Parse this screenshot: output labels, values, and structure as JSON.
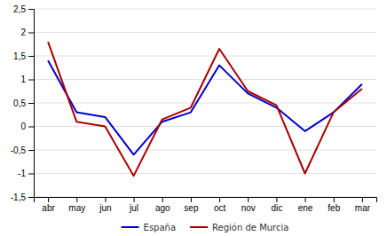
{
  "chart_data": {
    "type": "line",
    "categories": [
      "abr",
      "may",
      "jun",
      "jul",
      "ago",
      "sep",
      "oct",
      "nov",
      "dic",
      "ene",
      "feb",
      "mar"
    ],
    "series": [
      {
        "name": "España",
        "color": "#0000cc",
        "values": [
          1.4,
          0.3,
          0.2,
          -0.6,
          0.1,
          0.3,
          1.3,
          0.7,
          0.4,
          -0.1,
          0.3,
          0.9
        ]
      },
      {
        "name": "Región de Murcia",
        "color": "#aa0000",
        "values": [
          1.8,
          0.1,
          0.0,
          -1.05,
          0.15,
          0.4,
          1.65,
          0.75,
          0.45,
          -1.0,
          0.3,
          0.8
        ]
      }
    ],
    "ylim": [
      -1.5,
      2.5
    ],
    "yticks": [
      {
        "value": -1.5,
        "label": "-1,5"
      },
      -1,
      {
        "value": -0.5,
        "label": "-0,5"
      },
      0,
      {
        "value": 0.5,
        "label": "0,5"
      },
      1,
      {
        "value": 1.5,
        "label": "1,5"
      },
      2,
      {
        "value": 2.5,
        "label": "2,5"
      }
    ],
    "grid": true,
    "legend": "bottom"
  }
}
